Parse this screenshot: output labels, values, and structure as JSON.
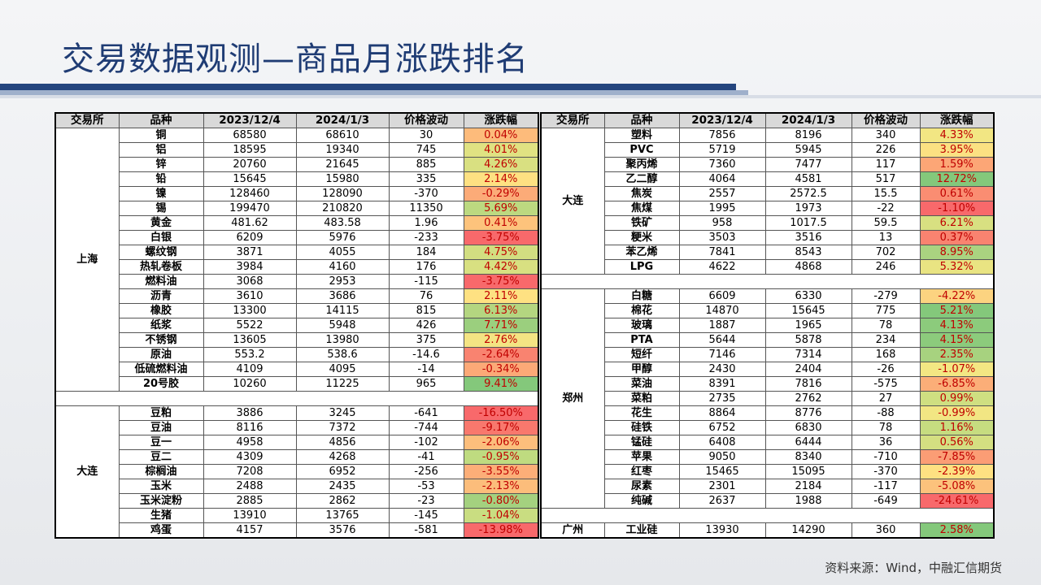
{
  "title": "交易数据观测—商品月涨跌排名",
  "source": "资料来源：Wind，中融汇信期货",
  "headers": [
    "交易所",
    "品种",
    "2023/12/4",
    "2024/1/3",
    "价格波动",
    "涨跌幅"
  ],
  "colors": {
    "red": "#f8696b",
    "orange": "#fba276",
    "yellow": "#ffdd82",
    "lightgreen": "#cde07f",
    "green": "#84c87b",
    "pct_red_text": "#c00000"
  },
  "left": {
    "exchanges": [
      "上海",
      "大连"
    ],
    "shanghai": [
      {
        "name": "铜",
        "v1": "68580",
        "v2": "68610",
        "chg": "30",
        "pct": "0.04%",
        "color": "#fdbb7b"
      },
      {
        "name": "铝",
        "v1": "18595",
        "v2": "19340",
        "chg": "745",
        "pct": "4.01%",
        "color": "#e0e282"
      },
      {
        "name": "锌",
        "v1": "20760",
        "v2": "21645",
        "chg": "885",
        "pct": "4.26%",
        "color": "#d9e081"
      },
      {
        "name": "铅",
        "v1": "15645",
        "v2": "15980",
        "chg": "335",
        "pct": "2.14%",
        "color": "#fee182"
      },
      {
        "name": "镍",
        "v1": "128460",
        "v2": "128090",
        "chg": "-370",
        "pct": "-0.29%",
        "color": "#fcab78"
      },
      {
        "name": "锡",
        "v1": "199470",
        "v2": "210820",
        "chg": "11350",
        "pct": "5.69%",
        "color": "#bcd980"
      },
      {
        "name": "黄金",
        "v1": "481.62",
        "v2": "483.58",
        "chg": "1.96",
        "pct": "0.41%",
        "color": "#fdc37c"
      },
      {
        "name": "白银",
        "v1": "6209",
        "v2": "5976",
        "chg": "-233",
        "pct": "-3.75%",
        "color": "#f8696b"
      },
      {
        "name": "螺纹钢",
        "v1": "3871",
        "v2": "4055",
        "chg": "184",
        "pct": "4.75%",
        "color": "#d2de81"
      },
      {
        "name": "热轧卷板",
        "v1": "3984",
        "v2": "4160",
        "chg": "176",
        "pct": "4.42%",
        "color": "#d8e081"
      },
      {
        "name": "燃料油",
        "v1": "3068",
        "v2": "2953",
        "chg": "-115",
        "pct": "-3.75%",
        "color": "#f8696b"
      },
      {
        "name": "沥青",
        "v1": "3610",
        "v2": "3686",
        "chg": "76",
        "pct": "2.11%",
        "color": "#fee182"
      },
      {
        "name": "橡胶",
        "v1": "13300",
        "v2": "14115",
        "chg": "815",
        "pct": "6.13%",
        "color": "#b4d680"
      },
      {
        "name": "纸浆",
        "v1": "5522",
        "v2": "5948",
        "chg": "426",
        "pct": "7.71%",
        "color": "#9bcf7e"
      },
      {
        "name": "不锈钢",
        "v1": "13605",
        "v2": "13980",
        "chg": "375",
        "pct": "2.76%",
        "color": "#f4e483"
      },
      {
        "name": "原油",
        "v1": "553.2",
        "v2": "538.6",
        "chg": "-14.6",
        "pct": "-2.64%",
        "color": "#f98370"
      },
      {
        "name": "低硫燃料油",
        "v1": "4109",
        "v2": "4095",
        "chg": "-14",
        "pct": "-0.34%",
        "color": "#fca977"
      },
      {
        "name": "20号胶",
        "v1": "10260",
        "v2": "11225",
        "chg": "965",
        "pct": "9.41%",
        "color": "#84c87b"
      }
    ],
    "dalian": [
      {
        "name": "豆粕",
        "v1": "3886",
        "v2": "3245",
        "chg": "-641",
        "pct": "-16.50%",
        "color": "#f8696b"
      },
      {
        "name": "豆油",
        "v1": "8116",
        "v2": "7372",
        "chg": "-744",
        "pct": "-9.17%",
        "color": "#f8786d"
      },
      {
        "name": "豆一",
        "v1": "4958",
        "v2": "4856",
        "chg": "-102",
        "pct": "-2.06%",
        "color": "#fcbe7c"
      },
      {
        "name": "豆二",
        "v1": "4309",
        "v2": "4268",
        "chg": "-41",
        "pct": "-0.95%",
        "color": "#bfdb80"
      },
      {
        "name": "棕榈油",
        "v1": "7208",
        "v2": "6952",
        "chg": "-256",
        "pct": "-3.55%",
        "color": "#fcae78"
      },
      {
        "name": "玉米",
        "v1": "2488",
        "v2": "2435",
        "chg": "-53",
        "pct": "-2.13%",
        "color": "#fcbd7b"
      },
      {
        "name": "玉米淀粉",
        "v1": "2885",
        "v2": "2862",
        "chg": "-23",
        "pct": "-0.80%",
        "color": "#a4d17f"
      },
      {
        "name": "生猪",
        "v1": "13910",
        "v2": "13765",
        "chg": "-145",
        "pct": "-1.04%",
        "color": "#c9dd81"
      },
      {
        "name": "鸡蛋",
        "v1": "4157",
        "v2": "3576",
        "chg": "-581",
        "pct": "-13.98%",
        "color": "#f8696b"
      }
    ]
  },
  "right": {
    "exchanges": [
      "大连",
      "郑州",
      "广州"
    ],
    "dalian": [
      {
        "name": "塑料",
        "v1": "7856",
        "v2": "8196",
        "chg": "340",
        "pct": "4.33%",
        "color": "#f2e683"
      },
      {
        "name": "PVC",
        "v1": "5719",
        "v2": "5945",
        "chg": "226",
        "pct": "3.95%",
        "color": "#fbe182"
      },
      {
        "name": "聚丙烯",
        "v1": "7360",
        "v2": "7477",
        "chg": "117",
        "pct": "1.59%",
        "color": "#fca676"
      },
      {
        "name": "乙二醇",
        "v1": "4064",
        "v2": "4581",
        "chg": "517",
        "pct": "12.72%",
        "color": "#84c87b"
      },
      {
        "name": "焦炭",
        "v1": "2557",
        "v2": "2572.5",
        "chg": "15.5",
        "pct": "0.61%",
        "color": "#fa8d72"
      },
      {
        "name": "焦煤",
        "v1": "1995",
        "v2": "1973",
        "chg": "-22",
        "pct": "-1.10%",
        "color": "#f8696b"
      },
      {
        "name": "铁矿",
        "v1": "958",
        "v2": "1017.5",
        "chg": "59.5",
        "pct": "6.21%",
        "color": "#d8e081"
      },
      {
        "name": "粳米",
        "v1": "3503",
        "v2": "3516",
        "chg": "13",
        "pct": "0.37%",
        "color": "#f98370"
      },
      {
        "name": "苯乙烯",
        "v1": "7841",
        "v2": "8543",
        "chg": "702",
        "pct": "8.95%",
        "color": "#aad380"
      },
      {
        "name": "LPG",
        "v1": "4622",
        "v2": "4868",
        "chg": "246",
        "pct": "5.32%",
        "color": "#e9e482"
      }
    ],
    "zhengzhou": [
      {
        "name": "白糖",
        "v1": "6609",
        "v2": "6330",
        "chg": "-279",
        "pct": "-4.22%",
        "color": "#fcd380"
      },
      {
        "name": "棉花",
        "v1": "14870",
        "v2": "15645",
        "chg": "775",
        "pct": "5.21%",
        "color": "#84c87b"
      },
      {
        "name": "玻璃",
        "v1": "1887",
        "v2": "1965",
        "chg": "78",
        "pct": "4.13%",
        "color": "#8ccb7c"
      },
      {
        "name": "PTA",
        "v1": "5644",
        "v2": "5878",
        "chg": "234",
        "pct": "4.15%",
        "color": "#8ccb7c"
      },
      {
        "name": "短纤",
        "v1": "7146",
        "v2": "7314",
        "chg": "168",
        "pct": "2.35%",
        "color": "#a7d27f"
      },
      {
        "name": "甲醇",
        "v1": "2430",
        "v2": "2404",
        "chg": "-26",
        "pct": "-1.07%",
        "color": "#f3e783"
      },
      {
        "name": "菜油",
        "v1": "8391",
        "v2": "7816",
        "chg": "-575",
        "pct": "-6.85%",
        "color": "#fbae78"
      },
      {
        "name": "菜粕",
        "v1": "2735",
        "v2": "2762",
        "chg": "27",
        "pct": "0.99%",
        "color": "#cfdf81"
      },
      {
        "name": "花生",
        "v1": "8864",
        "v2": "8776",
        "chg": "-88",
        "pct": "-0.99%",
        "color": "#f2e683"
      },
      {
        "name": "硅铁",
        "v1": "6752",
        "v2": "6830",
        "chg": "78",
        "pct": "1.16%",
        "color": "#c6dc80"
      },
      {
        "name": "锰硅",
        "v1": "6408",
        "v2": "6444",
        "chg": "36",
        "pct": "0.56%",
        "color": "#d4df81"
      },
      {
        "name": "苹果",
        "v1": "9050",
        "v2": "8340",
        "chg": "-710",
        "pct": "-7.85%",
        "color": "#fb9d75"
      },
      {
        "name": "红枣",
        "v1": "15465",
        "v2": "15095",
        "chg": "-370",
        "pct": "-2.39%",
        "color": "#fee182"
      },
      {
        "name": "尿素",
        "v1": "2301",
        "v2": "2184",
        "chg": "-117",
        "pct": "-5.08%",
        "color": "#fcc27c"
      },
      {
        "name": "纯碱",
        "v1": "2637",
        "v2": "1988",
        "chg": "-649",
        "pct": "-24.61%",
        "color": "#f8696b"
      }
    ],
    "guangzhou": [
      {
        "name": "工业硅",
        "v1": "13930",
        "v2": "14290",
        "chg": "360",
        "pct": "2.58%",
        "color": "#84c87b"
      }
    ]
  }
}
